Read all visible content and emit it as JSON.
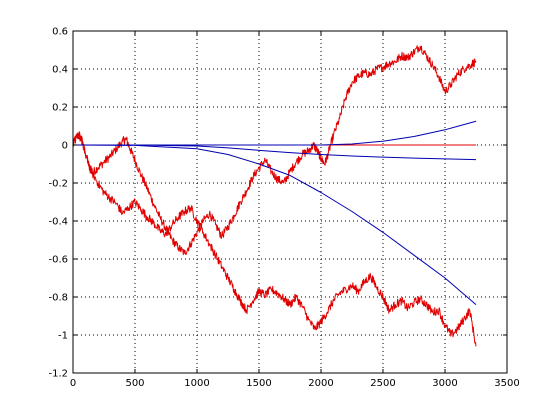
{
  "chart_data": {
    "type": "line",
    "title": "",
    "xlabel": "",
    "ylabel": "",
    "xlim": [
      0,
      3500
    ],
    "ylim": [
      -1.2,
      0.6
    ],
    "grid": true,
    "xticks": [
      0,
      500,
      1000,
      1500,
      2000,
      2500,
      3000,
      3500
    ],
    "xtick_labels": [
      "0",
      "500",
      "1000",
      "1500",
      "2000",
      "2500",
      "3000",
      "3500"
    ],
    "yticks": [
      0.6,
      0.4,
      0.2,
      0,
      -0.2,
      -0.4,
      -0.6,
      -0.8,
      -1,
      -1.2
    ],
    "ytick_labels": [
      "0.6",
      "0.4",
      "0.2",
      "0",
      "-0.2",
      "-0.4",
      "-0.6",
      "-0.8",
      "-1",
      "-1.2"
    ],
    "series": [
      {
        "color": "#e00000",
        "x": [
          0,
          40,
          70,
          100,
          150,
          200,
          250,
          300,
          350,
          400,
          430,
          460,
          500,
          550,
          600,
          650,
          700,
          750,
          800,
          850,
          900,
          950,
          1000,
          1050,
          1100,
          1150,
          1200,
          1250,
          1300,
          1350,
          1400,
          1450,
          1500,
          1550,
          1600,
          1650,
          1700,
          1750,
          1800,
          1850,
          1900,
          1940,
          1970,
          2000,
          2030,
          2060,
          2100,
          2150,
          2200,
          2250,
          2300,
          2350,
          2400,
          2450,
          2500,
          2550,
          2600,
          2650,
          2700,
          2750,
          2800,
          2850,
          2900,
          2950,
          3000,
          3050,
          3100,
          3150,
          3200,
          3250
        ],
        "y": [
          0.0,
          0.05,
          0.03,
          -0.05,
          -0.15,
          -0.12,
          -0.09,
          -0.06,
          -0.02,
          0.02,
          0.03,
          -0.02,
          -0.08,
          -0.16,
          -0.23,
          -0.31,
          -0.38,
          -0.44,
          -0.5,
          -0.54,
          -0.57,
          -0.52,
          -0.46,
          -0.4,
          -0.36,
          -0.42,
          -0.48,
          -0.43,
          -0.37,
          -0.3,
          -0.24,
          -0.17,
          -0.12,
          -0.08,
          -0.14,
          -0.18,
          -0.2,
          -0.14,
          -0.09,
          -0.05,
          -0.03,
          0.0,
          -0.03,
          -0.07,
          -0.1,
          -0.04,
          0.05,
          0.14,
          0.25,
          0.33,
          0.36,
          0.38,
          0.37,
          0.4,
          0.41,
          0.43,
          0.44,
          0.47,
          0.46,
          0.49,
          0.52,
          0.47,
          0.42,
          0.36,
          0.28,
          0.32,
          0.37,
          0.4,
          0.42,
          0.44
        ]
      },
      {
        "color": "#e00000",
        "x": [
          0,
          50,
          100,
          150,
          200,
          250,
          300,
          350,
          400,
          450,
          500,
          550,
          600,
          650,
          700,
          750,
          800,
          850,
          900,
          950,
          1000,
          1050,
          1100,
          1150,
          1200,
          1250,
          1300,
          1350,
          1400,
          1450,
          1500,
          1550,
          1600,
          1650,
          1700,
          1750,
          1800,
          1850,
          1900,
          1950,
          2000,
          2050,
          2100,
          2150,
          2200,
          2250,
          2300,
          2350,
          2400,
          2450,
          2500,
          2550,
          2600,
          2650,
          2700,
          2750,
          2800,
          2850,
          2900,
          2950,
          3000,
          3050,
          3100,
          3150,
          3200,
          3250
        ],
        "y": [
          0.0,
          0.07,
          -0.05,
          -0.14,
          -0.2,
          -0.25,
          -0.28,
          -0.31,
          -0.36,
          -0.33,
          -0.3,
          -0.34,
          -0.38,
          -0.41,
          -0.45,
          -0.47,
          -0.42,
          -0.38,
          -0.35,
          -0.33,
          -0.4,
          -0.46,
          -0.52,
          -0.58,
          -0.64,
          -0.7,
          -0.76,
          -0.82,
          -0.87,
          -0.82,
          -0.77,
          -0.79,
          -0.76,
          -0.78,
          -0.81,
          -0.84,
          -0.8,
          -0.85,
          -0.92,
          -0.97,
          -0.93,
          -0.88,
          -0.82,
          -0.78,
          -0.76,
          -0.74,
          -0.77,
          -0.72,
          -0.69,
          -0.75,
          -0.8,
          -0.87,
          -0.84,
          -0.82,
          -0.86,
          -0.83,
          -0.81,
          -0.84,
          -0.88,
          -0.87,
          -0.95,
          -1.0,
          -0.97,
          -0.92,
          -0.87,
          -1.06
        ]
      },
      {
        "color": "#e00000",
        "x": [
          0,
          3250
        ],
        "y": [
          0,
          0
        ]
      },
      {
        "color": "#0000b0",
        "x": [
          0,
          500,
          1000,
          1250,
          1500,
          1750,
          2000,
          2250,
          2500,
          2750,
          3000,
          3250
        ],
        "y": [
          0.0,
          0.0,
          0.0,
          0.0,
          0.0,
          0.0,
          0.0,
          0.005,
          0.02,
          0.045,
          0.08,
          0.125
        ]
      },
      {
        "color": "#0000b0",
        "x": [
          0,
          500,
          1000,
          1250,
          1500,
          1750,
          2000,
          2250,
          2500,
          2750,
          3000,
          3250
        ],
        "y": [
          0.0,
          0.0,
          -0.005,
          -0.015,
          -0.028,
          -0.04,
          -0.05,
          -0.058,
          -0.064,
          -0.069,
          -0.073,
          -0.077
        ]
      },
      {
        "color": "#0000b0",
        "x": [
          0,
          500,
          1000,
          1250,
          1500,
          1750,
          2000,
          2250,
          2500,
          2750,
          3000,
          3250
        ],
        "y": [
          0.0,
          -0.002,
          -0.02,
          -0.05,
          -0.1,
          -0.16,
          -0.25,
          -0.35,
          -0.46,
          -0.58,
          -0.7,
          -0.84
        ]
      }
    ]
  }
}
